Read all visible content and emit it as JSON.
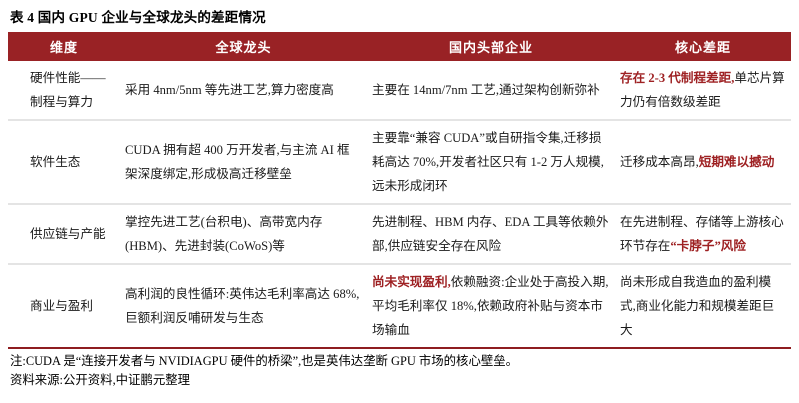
{
  "title": "表 4 国内 GPU 企业与全球龙头的差距情况",
  "colors": {
    "header_bg": "#992225",
    "accent_red": "#9e2123",
    "row_divider": "#e4e4e4",
    "table_bottom_border": "#8e1d20"
  },
  "table": {
    "headers": [
      "维度",
      "全球龙头",
      "国内头部企业",
      "核心差距"
    ],
    "cell_names": [
      "dimension-cell",
      "global-leader-cell",
      "domestic-company-cell",
      "core-gap-cell"
    ],
    "rows": [
      {
        "cells": [
          [
            {
              "text": "硬件性能——制程与算力",
              "em": false
            }
          ],
          [
            {
              "text": "采用 4nm/5nm 等先进工艺,算力密度高",
              "em": false
            }
          ],
          [
            {
              "text": "主要在 14nm/7nm 工艺,通过架构创新弥补",
              "em": false
            }
          ],
          [
            {
              "text": "存在 2-3 代制程差距,",
              "em": true
            },
            {
              "text": "单芯片算力仍有倍数级差距",
              "em": false
            }
          ]
        ]
      },
      {
        "cells": [
          [
            {
              "text": "软件生态",
              "em": false
            }
          ],
          [
            {
              "text": "CUDA 拥有超 400 万开发者,与主流 AI 框架深度绑定,形成极高迁移壁垒",
              "em": false
            }
          ],
          [
            {
              "text": "主要靠“兼容 CUDA”或自研指令集,迁移损耗高达 70%,开发者社区只有 1-2 万人规模,远未形成闭环",
              "em": false
            }
          ],
          [
            {
              "text": "迁移成本高昂,",
              "em": false
            },
            {
              "text": "短期难以撼动",
              "em": true
            }
          ]
        ]
      },
      {
        "cells": [
          [
            {
              "text": "供应链与产能",
              "em": false
            }
          ],
          [
            {
              "text": "掌控先进工艺(台积电)、高带宽内存(HBM)、先进封装(CoWoS)等",
              "em": false
            }
          ],
          [
            {
              "text": "先进制程、HBM 内存、EDA 工具等依赖外部,供应链安全存在风险",
              "em": false
            }
          ],
          [
            {
              "text": "在先进制程、存储等上游核心环节存在",
              "em": false
            },
            {
              "text": "“卡脖子”风险",
              "em": true
            }
          ]
        ]
      },
      {
        "cells": [
          [
            {
              "text": "商业与盈利",
              "em": false
            }
          ],
          [
            {
              "text": "高利润的良性循环:英伟达毛利率高达 68%,巨额利润反哺研发与生态",
              "em": false
            }
          ],
          [
            {
              "text": "尚未实现盈利,",
              "em": true
            },
            {
              "text": "依赖融资:企业处于高投入期,平均毛利率仅 18%,依赖政府补贴与资本市场输血",
              "em": false
            }
          ],
          [
            {
              "text": "尚未形成自我造血的盈利模式,商业化能力和规模差距巨大",
              "em": false
            }
          ]
        ]
      }
    ]
  },
  "notes": [
    "注:CUDA 是“连接开发者与 NVIDIAGPU 硬件的桥梁”,也是英伟达垄断 GPU 市场的核心壁垒。",
    "资料来源:公开资料,中证鹏元整理"
  ]
}
